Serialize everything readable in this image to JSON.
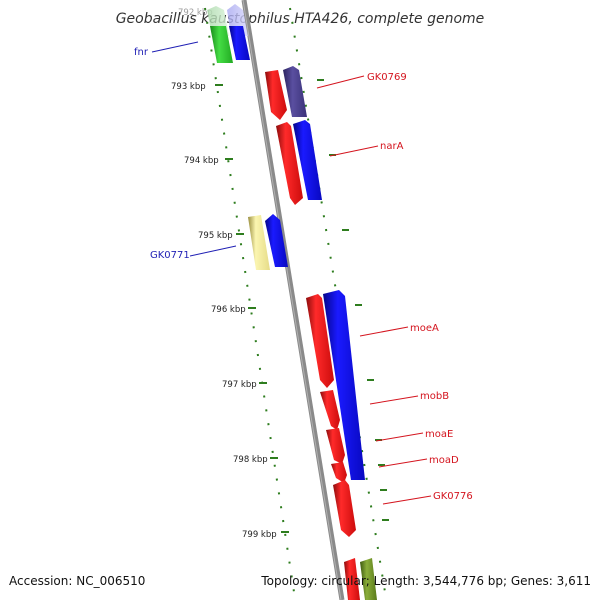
{
  "title": "Geobacillus kaustophilus HTA426, complete genome",
  "faded_top_label": "792 kbp",
  "ticks": [
    "793 kbp",
    "794 kbp",
    "795 kbp",
    "796 kbp",
    "797 kbp",
    "798 kbp",
    "799 kbp"
  ],
  "gene_labels": [
    {
      "text": "fnr",
      "color": "#1f1fb4"
    },
    {
      "text": "GK0769",
      "color": "#d4141e"
    },
    {
      "text": "narA",
      "color": "#d4141e"
    },
    {
      "text": "GK0771",
      "color": "#1f1fb4"
    },
    {
      "text": "moeA",
      "color": "#d4141e"
    },
    {
      "text": "mobB",
      "color": "#d4141e"
    },
    {
      "text": "moaE",
      "color": "#d4141e"
    },
    {
      "text": "moaD",
      "color": "#d4141e"
    },
    {
      "text": "GK0776",
      "color": "#d4141e"
    }
  ],
  "footer": {
    "accession": "Accession: NC_006510",
    "summary": "Topology: circular; Length: 3,544,776 bp; Genes: 3,611"
  },
  "colors": {
    "backbone": "#808080",
    "tick_dots": "#2e7d1e",
    "gene_red": "#ee1111",
    "gene_blue": "#0a0ae6",
    "gene_green": "#33cc33",
    "gene_purple": "#4a3f8a",
    "gene_yellow": "#f2ec9a",
    "gene_olive": "#6b8e23"
  }
}
